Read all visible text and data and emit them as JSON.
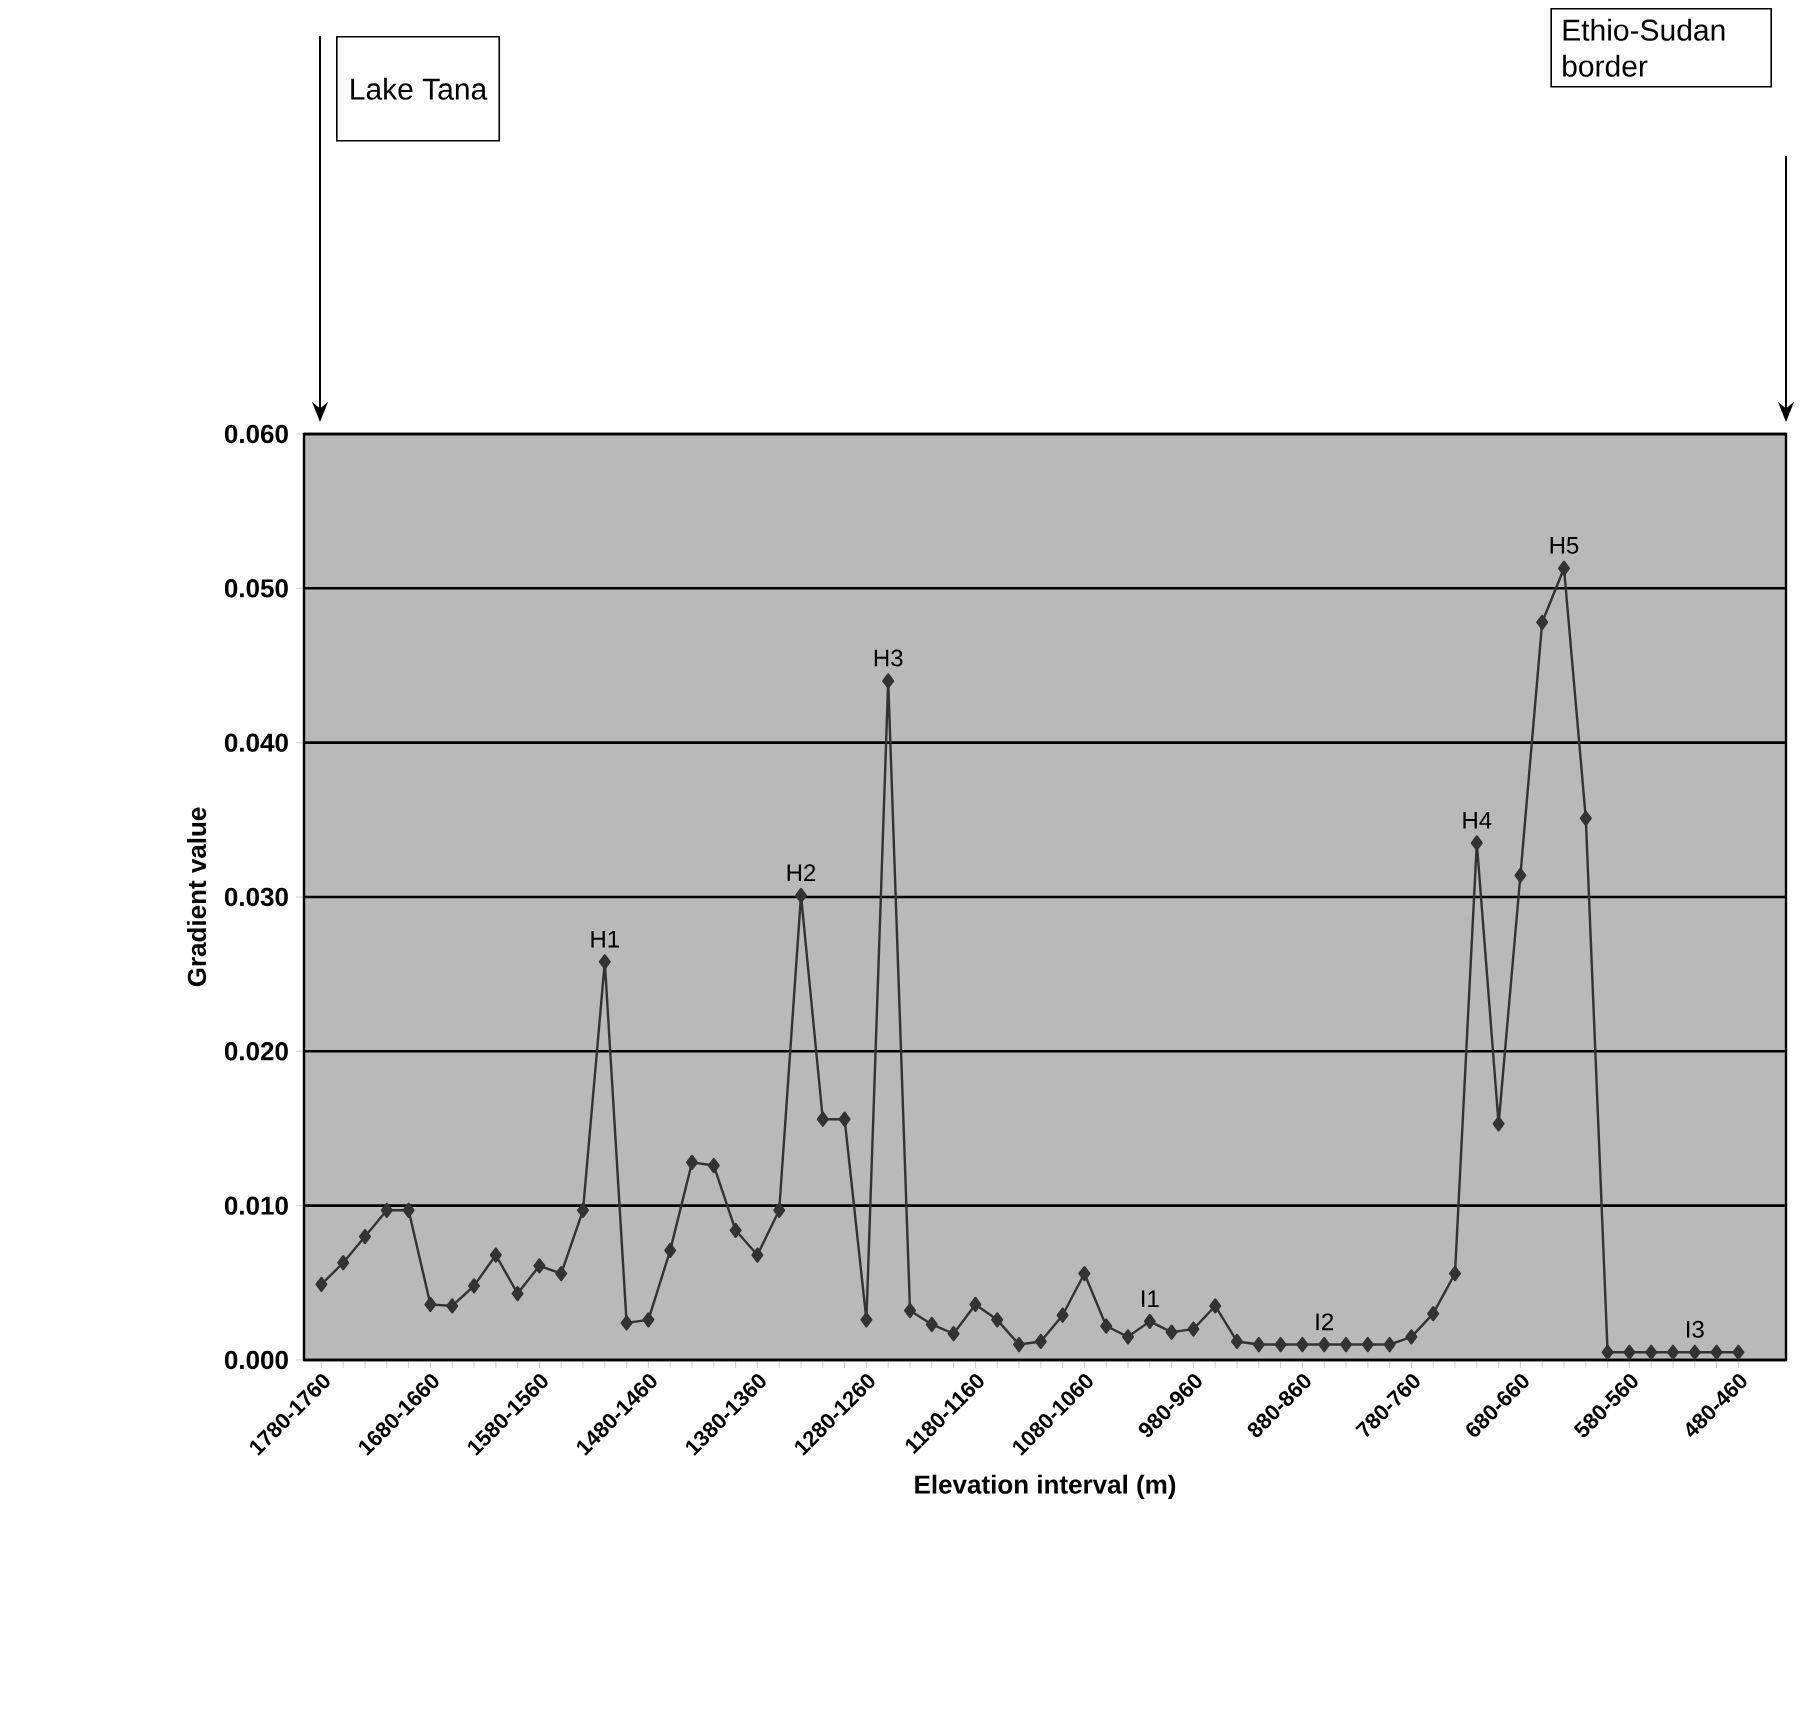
{
  "chart_data": {
    "type": "line",
    "xlabel": "Elevation interval (m)",
    "ylabel": "Gradient value",
    "categories": [
      "1780-1760",
      null,
      null,
      null,
      null,
      "1680-1660",
      null,
      null,
      null,
      null,
      "1580-1560",
      null,
      null,
      null,
      null,
      "1480-1460",
      null,
      null,
      null,
      null,
      "1380-1360",
      null,
      null,
      null,
      null,
      "1280-1260",
      null,
      null,
      null,
      null,
      "1180-1160",
      null,
      null,
      null,
      null,
      "1080-1060",
      null,
      null,
      null,
      null,
      "980-960",
      null,
      null,
      null,
      null,
      "880-860",
      null,
      null,
      null,
      null,
      "780-760",
      null,
      null,
      null,
      null,
      "680-660",
      null,
      null,
      null,
      null,
      "580-560",
      null,
      null,
      null,
      null,
      "480-460"
    ],
    "series": [
      {
        "color": "#333333",
        "values": [
          0.0049,
          0.0063,
          0.008,
          0.0097,
          0.0097,
          0.0036,
          0.0035,
          0.0048,
          0.0068,
          0.0043,
          0.0061,
          0.0056,
          0.0097,
          0.0258,
          0.0024,
          0.0026,
          0.0071,
          0.0128,
          0.0126,
          0.0084,
          0.0068,
          0.0097,
          0.0301,
          0.0156,
          0.0156,
          0.0026,
          0.044,
          0.0032,
          0.0023,
          0.0017,
          0.0036,
          0.0026,
          0.001,
          0.0012,
          0.0029,
          0.0056,
          0.0022,
          0.0015,
          0.0025,
          0.0018,
          0.002,
          0.0035,
          0.0012,
          0.001,
          0.001,
          0.001,
          0.001,
          0.001,
          0.001,
          0.001,
          0.0015,
          0.003,
          0.0056,
          0.0335,
          0.0153,
          0.0314,
          0.0478,
          0.0513,
          0.0351,
          0.0005,
          0.0005,
          0.0005,
          0.0005,
          0.0005,
          0.0005,
          0.0005
        ],
        "value_labels": [
          null,
          null,
          null,
          null,
          null,
          null,
          null,
          null,
          null,
          null,
          null,
          null,
          null,
          "H1",
          null,
          null,
          null,
          null,
          null,
          null,
          null,
          null,
          "H2",
          null,
          null,
          null,
          "H3",
          null,
          null,
          null,
          null,
          null,
          null,
          null,
          null,
          null,
          null,
          null,
          "I1",
          null,
          null,
          null,
          null,
          null,
          null,
          null,
          "I2",
          null,
          null,
          null,
          null,
          null,
          null,
          "H4",
          null,
          null,
          null,
          "H5",
          null,
          null,
          null,
          null,
          null,
          "I3",
          null,
          null
        ]
      }
    ],
    "ylim": [
      0,
      0.06
    ],
    "yticks": [
      {
        "value": 0,
        "label": "0.000"
      },
      {
        "value": 0.01,
        "label": "0.010"
      },
      {
        "value": 0.02,
        "label": "0.020"
      },
      {
        "value": 0.03,
        "label": "0.030"
      },
      {
        "value": 0.04,
        "label": "0.040"
      },
      {
        "value": 0.05,
        "label": "0.050"
      },
      {
        "value": 0.06,
        "label": "0.060"
      }
    ],
    "grid": "y",
    "marker": "diamond",
    "line_style": "solid",
    "annotations": [
      "Lake Tana",
      "Ethio-Sudan border"
    ]
  }
}
